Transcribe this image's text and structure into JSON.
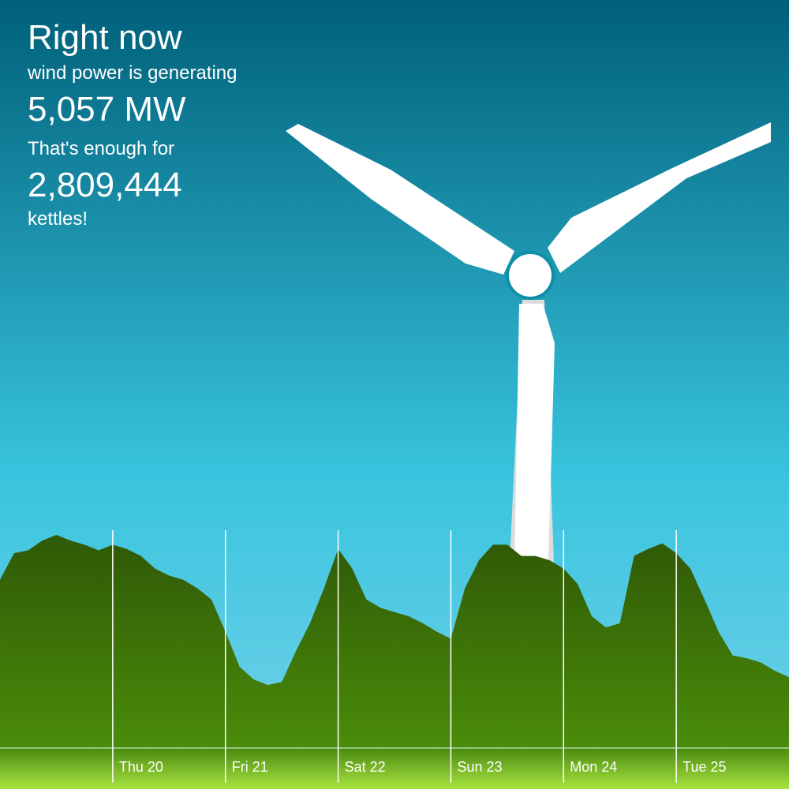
{
  "header": {
    "title": "Right now",
    "line1": "wind power is generating",
    "power": "5,057 MW",
    "line2": "That's enough for",
    "kettles": "2,809,444",
    "line3": "kettles!"
  },
  "chart_data": {
    "type": "area",
    "categories": [
      null,
      null,
      null,
      null,
      null,
      null,
      null,
      null,
      "Thu 20",
      null,
      null,
      null,
      null,
      null,
      null,
      null,
      "Fri 21",
      null,
      null,
      null,
      null,
      null,
      null,
      null,
      "Sat 22",
      null,
      null,
      null,
      null,
      null,
      null,
      null,
      "Sun 23",
      null,
      null,
      null,
      null,
      null,
      null,
      null,
      "Mon 24",
      null,
      null,
      null,
      null,
      null,
      null,
      null,
      "Tue 25",
      null,
      null,
      null,
      null,
      null,
      null,
      null,
      null
    ],
    "values": [
      12000,
      13900,
      14100,
      14800,
      15200,
      14800,
      14500,
      14100,
      14500,
      14200,
      13700,
      12800,
      12300,
      12000,
      11400,
      10600,
      8300,
      5800,
      4900,
      4500,
      4700,
      6900,
      8900,
      11400,
      14200,
      12800,
      10600,
      10000,
      9700,
      9400,
      8900,
      8300,
      7800,
      11400,
      13400,
      14500,
      14500,
      13700,
      13700,
      13400,
      12800,
      11700,
      9400,
      8600,
      8900,
      13700,
      14200,
      14600,
      13900,
      12800,
      10600,
      8300,
      6600,
      6400,
      6100,
      5500,
      5057
    ],
    "color": "#3a6a08",
    "grid": true
  }
}
